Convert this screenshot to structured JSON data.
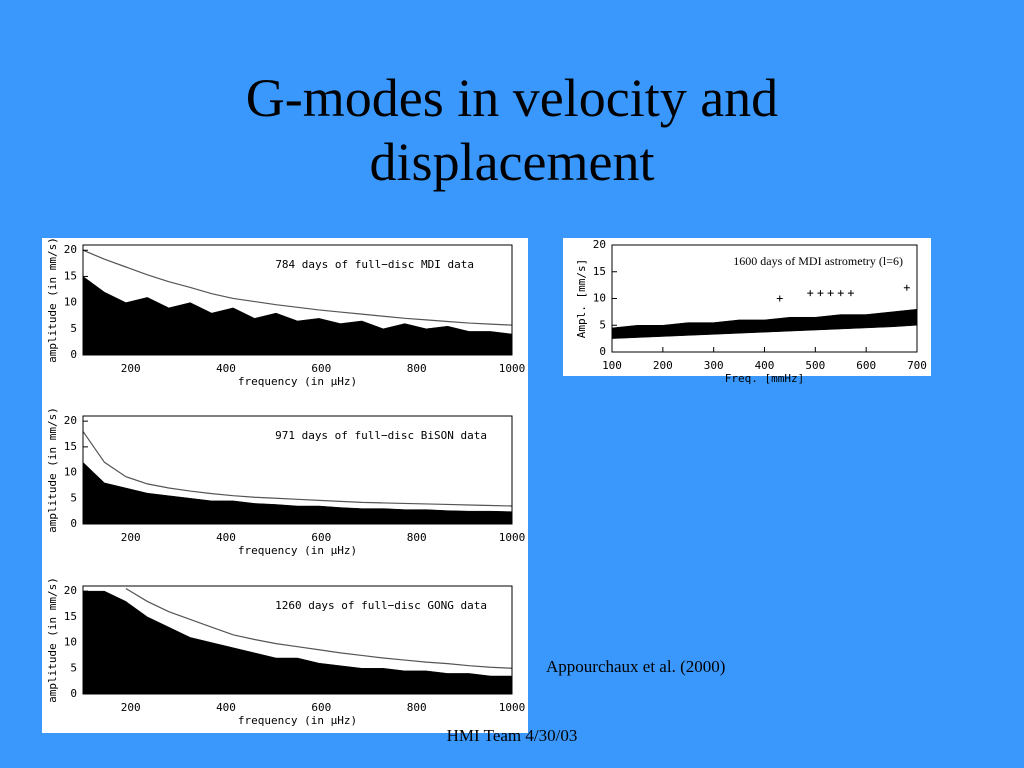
{
  "title": "G-modes in velocity and displacement",
  "citation": "Appourchaux et al. (2000)",
  "footer": "HMI Team 4/30/03",
  "chart_data": [
    {
      "type": "line",
      "annotation": "784 days of full−disc MDI data",
      "xlabel": "frequency (in μHz)",
      "ylabel": "amplitude (in mm/s)",
      "xlim": [
        100,
        1000
      ],
      "xticks": [
        200,
        400,
        600,
        800,
        1000
      ],
      "ylim": [
        0,
        21
      ],
      "yticks": [
        0,
        5,
        10,
        15,
        20
      ],
      "x": [
        100,
        145,
        190,
        235,
        280,
        325,
        370,
        415,
        460,
        505,
        550,
        595,
        640,
        685,
        730,
        775,
        820,
        865,
        910,
        955,
        1000
      ],
      "series": [
        {
          "type": "area",
          "color": "#000000",
          "values": [
            15,
            12,
            10,
            11,
            9,
            10,
            8,
            9,
            7,
            8,
            6.5,
            7,
            6,
            6.5,
            5,
            6,
            5,
            5.5,
            4.5,
            4.5,
            4
          ]
        },
        {
          "type": "line",
          "color": "#555555",
          "values": [
            20,
            18.3,
            16.8,
            15.3,
            14,
            12.9,
            11.7,
            10.8,
            10.2,
            9.6,
            9.1,
            8.6,
            8.2,
            7.8,
            7.4,
            7.0,
            6.7,
            6.4,
            6.1,
            5.9,
            5.7
          ]
        }
      ]
    },
    {
      "type": "line",
      "annotation": "971 days of full−disc BiSON data",
      "xlabel": "frequency (in μHz)",
      "ylabel": "amplitude (in mm/s)",
      "xlim": [
        100,
        1000
      ],
      "xticks": [
        200,
        400,
        600,
        800,
        1000
      ],
      "ylim": [
        0,
        21
      ],
      "yticks": [
        0,
        5,
        10,
        15,
        20
      ],
      "x": [
        100,
        145,
        190,
        235,
        280,
        325,
        370,
        415,
        460,
        505,
        550,
        595,
        640,
        685,
        730,
        775,
        820,
        865,
        910,
        955,
        1000
      ],
      "series": [
        {
          "type": "area",
          "color": "#000000",
          "values": [
            12,
            8,
            7,
            6,
            5.5,
            5,
            4.5,
            4.5,
            4,
            3.8,
            3.5,
            3.5,
            3.2,
            3,
            3,
            2.8,
            2.8,
            2.6,
            2.5,
            2.5,
            2.4
          ]
        },
        {
          "type": "line",
          "color": "#555555",
          "values": [
            18,
            12,
            9.2,
            7.8,
            7,
            6.4,
            5.9,
            5.5,
            5.2,
            5,
            4.8,
            4.6,
            4.4,
            4.2,
            4.1,
            4,
            3.9,
            3.8,
            3.7,
            3.6,
            3.5
          ]
        }
      ]
    },
    {
      "type": "line",
      "annotation": "1260 days of full−disc GONG data",
      "xlabel": "frequency (in μHz)",
      "ylabel": "amplitude (in mm/s)",
      "xlim": [
        100,
        1000
      ],
      "xticks": [
        200,
        400,
        600,
        800,
        1000
      ],
      "ylim": [
        0,
        21
      ],
      "yticks": [
        0,
        5,
        10,
        15,
        20
      ],
      "x": [
        100,
        145,
        190,
        235,
        280,
        325,
        370,
        415,
        460,
        505,
        550,
        595,
        640,
        685,
        730,
        775,
        820,
        865,
        910,
        955,
        1000
      ],
      "series": [
        {
          "type": "area",
          "color": "#000000",
          "values": [
            20,
            20,
            18,
            15,
            13,
            11,
            10,
            9,
            8,
            7,
            7,
            6,
            5.5,
            5,
            5,
            4.5,
            4.5,
            4,
            4,
            3.5,
            3.5
          ]
        },
        {
          "type": "line",
          "color": "#555555",
          "values": [
            null,
            null,
            20.5,
            18,
            16,
            14.5,
            13,
            11.5,
            10.6,
            9.8,
            9.2,
            8.6,
            8,
            7.5,
            7,
            6.6,
            6.2,
            5.9,
            5.5,
            5.2,
            5
          ]
        }
      ]
    },
    {
      "type": "line",
      "annotation": "1600 days of MDI astrometry (l=6)",
      "xlabel": "Freq. [mmHz]",
      "ylabel": "Ampl. [mm/s]",
      "xlim": [
        100,
        700
      ],
      "xticks": [
        100,
        200,
        300,
        400,
        500,
        600,
        700
      ],
      "ylim": [
        0,
        20
      ],
      "yticks": [
        0,
        5,
        10,
        15,
        20
      ],
      "x": [
        100,
        150,
        200,
        250,
        300,
        350,
        400,
        450,
        500,
        550,
        600,
        650,
        700
      ],
      "series": [
        {
          "type": "area",
          "color": "#000000",
          "values": [
            4.5,
            5,
            5,
            5.5,
            5.5,
            6,
            6,
            6.5,
            6.5,
            7,
            7,
            7.5,
            8
          ],
          "low": [
            2.5,
            2.7,
            2.9,
            3.1,
            3.3,
            3.5,
            3.7,
            3.9,
            4.1,
            4.3,
            4.5,
            4.7,
            5
          ]
        },
        {
          "type": "scatter",
          "color": "#000000",
          "x": [
            430,
            490,
            510,
            530,
            550,
            570,
            680
          ],
          "values": [
            10,
            11,
            11,
            11,
            11,
            11,
            12
          ]
        }
      ]
    }
  ]
}
